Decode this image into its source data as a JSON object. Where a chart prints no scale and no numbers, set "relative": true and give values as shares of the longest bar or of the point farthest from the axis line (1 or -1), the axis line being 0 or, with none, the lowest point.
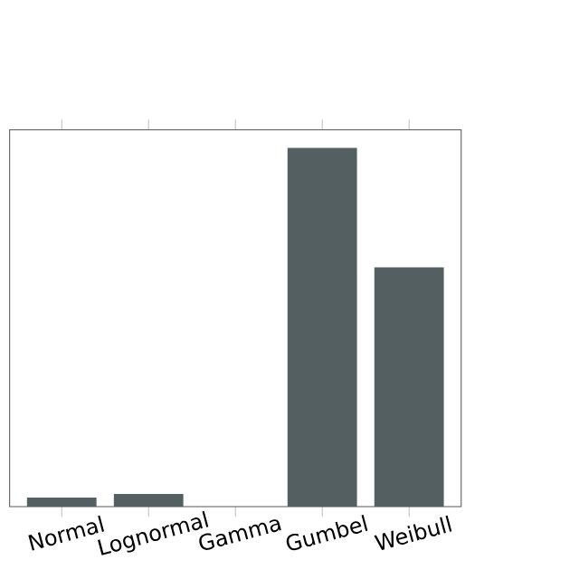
{
  "chart_data": {
    "type": "bar",
    "relative": true,
    "categories": [
      "Normal",
      "Lognormal",
      "Gamma",
      "Gumbel",
      "Weibull"
    ],
    "values": [
      0.025,
      0.035,
      0,
      1,
      0.667
    ],
    "color": "#535f60"
  }
}
